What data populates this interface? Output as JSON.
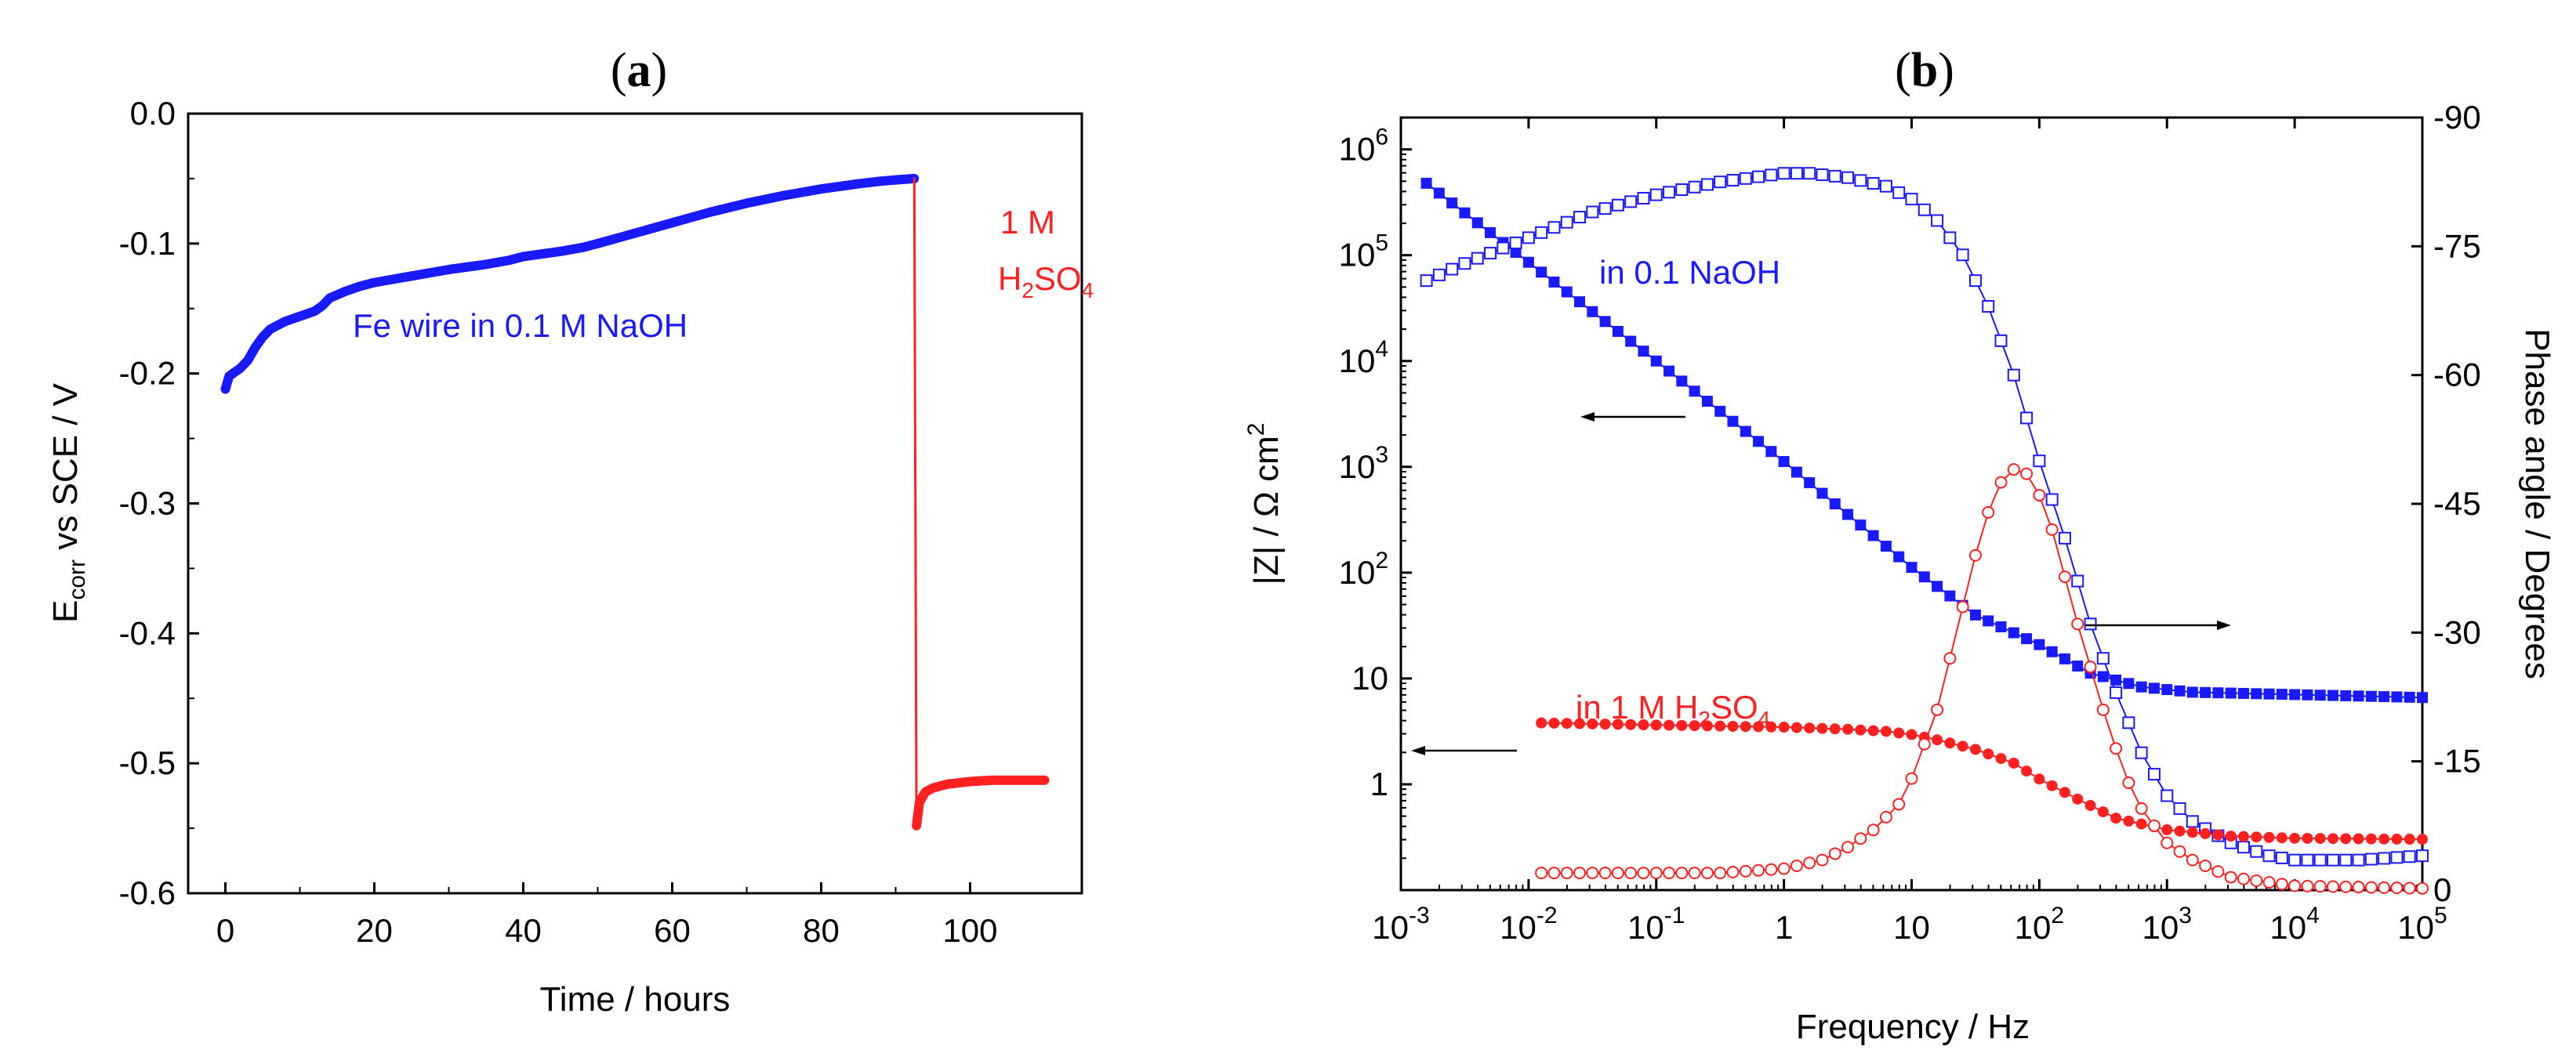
{
  "panels": {
    "a": {
      "label_open": "(",
      "label_letter": "a",
      "label_close": ")"
    },
    "b": {
      "label_open": "(",
      "label_letter": "b",
      "label_close": ")"
    }
  },
  "chart_data": [
    {
      "id": "a",
      "type": "line",
      "title": "(a)",
      "xlabel": "Time / hours",
      "ylabel_parts": {
        "main": "E",
        "sub": "corr",
        "rest": " vs SCE / V"
      },
      "xlim": [
        -5,
        115
      ],
      "ylim": [
        -0.6,
        0.0
      ],
      "xticks": [
        0,
        20,
        40,
        60,
        80,
        100
      ],
      "yticks": [
        0.0,
        -0.1,
        -0.2,
        -0.3,
        -0.4,
        -0.5,
        -0.6
      ],
      "ytick_labels": [
        "0.0",
        "-0.1",
        "-0.2",
        "-0.3",
        "-0.4",
        "-0.5",
        "-0.6"
      ],
      "annotations": {
        "naoh": {
          "text": "Fe wire in 0.1 M NaOH",
          "color": "#1a1aff"
        },
        "acid_line1": "1 M",
        "acid_line2_parts": {
          "a": "H",
          "sub1": "2",
          "b": "SO",
          "sub2": "4"
        },
        "acid_color": "#ff2020"
      },
      "series": [
        {
          "name": "Fe wire in 0.1 M NaOH",
          "color": "#1a1aff",
          "x": [
            0,
            0.5,
            1,
            2,
            3,
            4,
            5,
            6,
            8,
            10,
            12,
            13,
            14,
            16,
            18,
            20,
            25,
            30,
            35,
            38,
            40,
            45,
            48,
            50,
            55,
            60,
            65,
            70,
            75,
            80,
            85,
            88,
            90,
            92.5
          ],
          "y": [
            -0.212,
            -0.202,
            -0.2,
            -0.196,
            -0.19,
            -0.18,
            -0.172,
            -0.166,
            -0.16,
            -0.156,
            -0.152,
            -0.148,
            -0.142,
            -0.137,
            -0.133,
            -0.13,
            -0.125,
            -0.12,
            -0.116,
            -0.113,
            -0.11,
            -0.106,
            -0.103,
            -0.1,
            -0.092,
            -0.084,
            -0.076,
            -0.069,
            -0.063,
            -0.058,
            -0.054,
            -0.052,
            -0.051,
            -0.05
          ]
        },
        {
          "name": "1 M H2SO4",
          "color": "#ff2020",
          "x": [
            92.5,
            92.8,
            93.2,
            94,
            95,
            97,
            100,
            103,
            106,
            110
          ],
          "y": [
            -0.05,
            -0.548,
            -0.53,
            -0.522,
            -0.519,
            -0.516,
            -0.514,
            -0.513,
            -0.513,
            -0.513
          ]
        }
      ]
    },
    {
      "id": "b",
      "type": "scatter",
      "title": "(b)",
      "xlabel": "Frequency / Hz",
      "ylabel_left_parts": {
        "a": "|Z| / Ω cm",
        "sup": "2"
      },
      "ylabel_right": "Phase angle / Degrees",
      "x_scale": "log",
      "y_left_scale": "log",
      "xlim": [
        0.001,
        100000
      ],
      "ylim_left": [
        0.1,
        2000000
      ],
      "ylim_right": [
        0,
        -90
      ],
      "xtick_labels": [
        {
          "base": "10",
          "exp": "-3"
        },
        {
          "base": "10",
          "exp": "-2"
        },
        {
          "base": "10",
          "exp": "-1"
        },
        {
          "base": "1",
          "exp": ""
        },
        {
          "base": "10",
          "exp": ""
        },
        {
          "base": "10",
          "exp": "2"
        },
        {
          "base": "10",
          "exp": "3"
        },
        {
          "base": "10",
          "exp": "4"
        },
        {
          "base": "10",
          "exp": "5"
        }
      ],
      "ytick_left_labels": [
        {
          "base": "1",
          "exp": ""
        },
        {
          "base": "10",
          "exp": ""
        },
        {
          "base": "10",
          "exp": "2"
        },
        {
          "base": "10",
          "exp": "3"
        },
        {
          "base": "10",
          "exp": "4"
        },
        {
          "base": "10",
          "exp": "5"
        },
        {
          "base": "10",
          "exp": "6"
        }
      ],
      "yticks_right": [
        "0",
        "-15",
        "-30",
        "-45",
        "-60",
        "-75",
        "-90"
      ],
      "annotations": {
        "naoh": {
          "text": "in 0.1 NaOH",
          "color": "#1a1aff"
        },
        "acid_parts": {
          "a": "in 1 M H",
          "sub1": "2",
          "b": "SO",
          "sub2": "4"
        },
        "acid_color": "#ff2020"
      },
      "series": [
        {
          "name": "|Z| in 0.1 NaOH",
          "axis": "left",
          "color": "#1a1aff",
          "marker": "filled-square",
          "logf": [
            -2.8,
            -1.0,
            0.0,
            1.0,
            1.5,
            2.0,
            2.4,
            2.8,
            3.2,
            5.0
          ],
          "logz": [
            5.68,
            4.0,
            3.05,
            2.05,
            1.6,
            1.32,
            1.05,
            0.92,
            0.87,
            0.82
          ]
        },
        {
          "name": "phase in 0.1 NaOH",
          "axis": "right",
          "color": "#1a1aff",
          "marker": "open-square",
          "logf": [
            -2.8,
            -2.5,
            -2.0,
            -1.5,
            -1.0,
            -0.5,
            0.0,
            0.2,
            0.5,
            0.8,
            1.0,
            1.2,
            1.4,
            1.6,
            1.8,
            2.0,
            2.2,
            2.4,
            2.6,
            2.8,
            3.0,
            3.2,
            3.5,
            3.8,
            4.0,
            4.5,
            5.0
          ],
          "phase": [
            -71,
            -73,
            -76,
            -79,
            -81,
            -82.5,
            -83.5,
            -83.5,
            -83,
            -82,
            -80.5,
            -78,
            -74,
            -68,
            -60,
            -50,
            -41,
            -31,
            -23,
            -16,
            -11,
            -8,
            -5.5,
            -4,
            -3.5,
            -3.5,
            -4
          ]
        },
        {
          "name": "|Z| in 1 M H2SO4",
          "axis": "left",
          "color": "#ff2020",
          "marker": "filled-circle",
          "logf": [
            -1.9,
            -1.0,
            0.0,
            0.5,
            0.8,
            1.0,
            1.2,
            1.5,
            1.8,
            2.0,
            2.3,
            2.6,
            3.0,
            3.5,
            4.0,
            5.0
          ],
          "logz": [
            0.58,
            0.56,
            0.54,
            0.52,
            0.5,
            0.47,
            0.42,
            0.33,
            0.2,
            0.05,
            -0.14,
            -0.32,
            -0.43,
            -0.49,
            -0.51,
            -0.52
          ]
        },
        {
          "name": "phase in 1 M H2SO4",
          "axis": "right",
          "color": "#ff2020",
          "marker": "open-circle",
          "logf": [
            -1.9,
            -1.5,
            -1.0,
            -0.5,
            0.0,
            0.3,
            0.5,
            0.7,
            0.9,
            1.0,
            1.1,
            1.2,
            1.3,
            1.4,
            1.5,
            1.6,
            1.7,
            1.8,
            1.9,
            2.0,
            2.1,
            2.2,
            2.3,
            2.4,
            2.5,
            2.6,
            2.7,
            2.8,
            3.0,
            3.2,
            3.5,
            4.0,
            5.0
          ],
          "phase": [
            -2,
            -2,
            -2,
            -2,
            -2.5,
            -3.5,
            -5,
            -7,
            -10,
            -13,
            -17,
            -21,
            -27,
            -33,
            -39,
            -44,
            -47.5,
            -49,
            -48.5,
            -46,
            -42,
            -36.5,
            -31,
            -26,
            -21,
            -16.5,
            -12.5,
            -9.5,
            -5.5,
            -3.5,
            -1.5,
            -0.5,
            -0.2
          ]
        }
      ]
    }
  ]
}
